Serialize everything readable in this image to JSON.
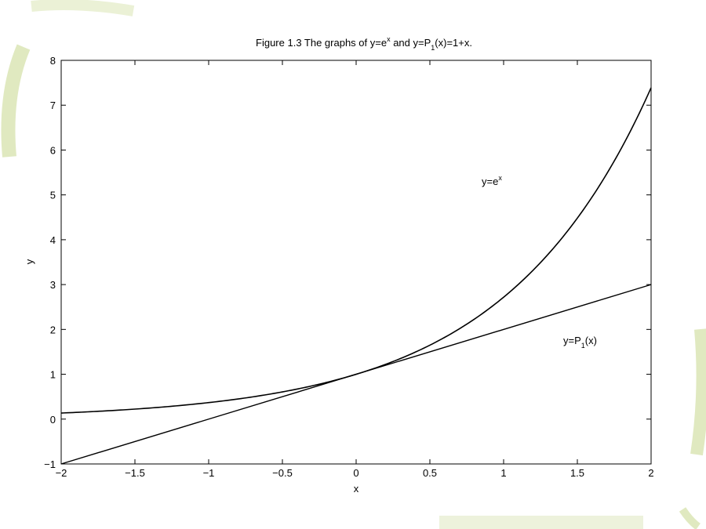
{
  "colors": {
    "background": "#ffffff",
    "decor_green": "#d8e3b0",
    "axes": "#000000",
    "curve": "#000000"
  },
  "chart_data": {
    "type": "line",
    "title": {
      "prefix": "Figure 1.3 The graphs of y=e",
      "sup": "x",
      "mid": " and y=P",
      "sub": "1",
      "suffix": "(x)=1+x."
    },
    "xlabel": "x",
    "ylabel": "y",
    "xlim": [
      -2,
      2
    ],
    "ylim": [
      -1,
      8
    ],
    "xticks": [
      -2,
      -1.5,
      -1,
      -0.5,
      0,
      0.5,
      1,
      1.5,
      2
    ],
    "xtick_labels": [
      "−2",
      "−1.5",
      "−1",
      "−0.5",
      "0",
      "0.5",
      "1",
      "1.5",
      "2"
    ],
    "yticks": [
      -1,
      0,
      1,
      2,
      3,
      4,
      5,
      6,
      7,
      8
    ],
    "ytick_labels": [
      "−1",
      "0",
      "1",
      "2",
      "3",
      "4",
      "5",
      "6",
      "7",
      "8"
    ],
    "grid": false,
    "series": [
      {
        "key": "exp",
        "x": [
          -2,
          -1.75,
          -1.5,
          -1.25,
          -1,
          -0.75,
          -0.5,
          -0.25,
          0,
          0.25,
          0.5,
          0.75,
          1,
          1.25,
          1.5,
          1.75,
          2
        ],
        "y": [
          0.135,
          0.174,
          0.223,
          0.287,
          0.368,
          0.472,
          0.607,
          0.779,
          1.0,
          1.284,
          1.649,
          2.117,
          2.718,
          3.49,
          4.482,
          5.755,
          7.389
        ]
      },
      {
        "key": "linear",
        "x": [
          -2,
          2
        ],
        "y": [
          -1,
          3
        ]
      }
    ],
    "annotations": [
      {
        "key": "exp_label",
        "base": "y=e",
        "sup": "x",
        "x": 0.85,
        "y": 5.2
      },
      {
        "key": "linear_label",
        "base": "y=P",
        "sub": "1",
        "suffix": "(x)",
        "x": 1.4,
        "y": 1.65
      }
    ]
  }
}
